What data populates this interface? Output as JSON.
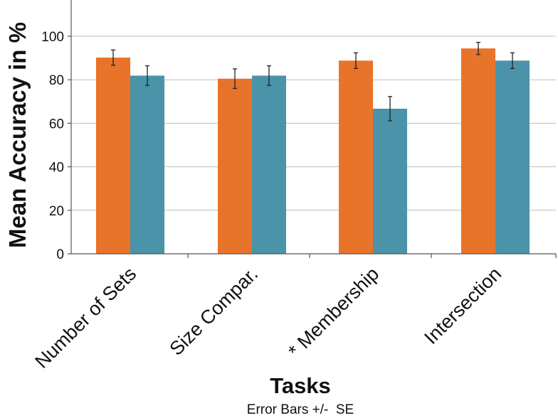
{
  "chart_data": {
    "type": "bar",
    "categories": [
      "Number of Sets",
      "Size Compar.",
      "* Membership",
      "Intersection"
    ],
    "series": [
      {
        "color": "#e8732a",
        "values": [
          90.2,
          80.5,
          88.8,
          94.4
        ],
        "error": [
          3.5,
          4.5,
          3.6,
          2.8
        ]
      },
      {
        "color": "#4a93a8",
        "values": [
          81.9,
          81.9,
          66.7,
          88.8
        ],
        "error": [
          4.5,
          4.5,
          5.6,
          3.6
        ]
      }
    ],
    "ylabel": "Mean Accuracy in %",
    "xlabel": "Tasks",
    "ylim": [
      0,
      110
    ],
    "yticks": [
      0,
      20,
      40,
      60,
      80,
      100
    ],
    "ytick_labels": [
      "0",
      "20",
      "40",
      "60",
      "80",
      "100"
    ],
    "grid": true,
    "note": "Error Bars +/-  SE"
  }
}
